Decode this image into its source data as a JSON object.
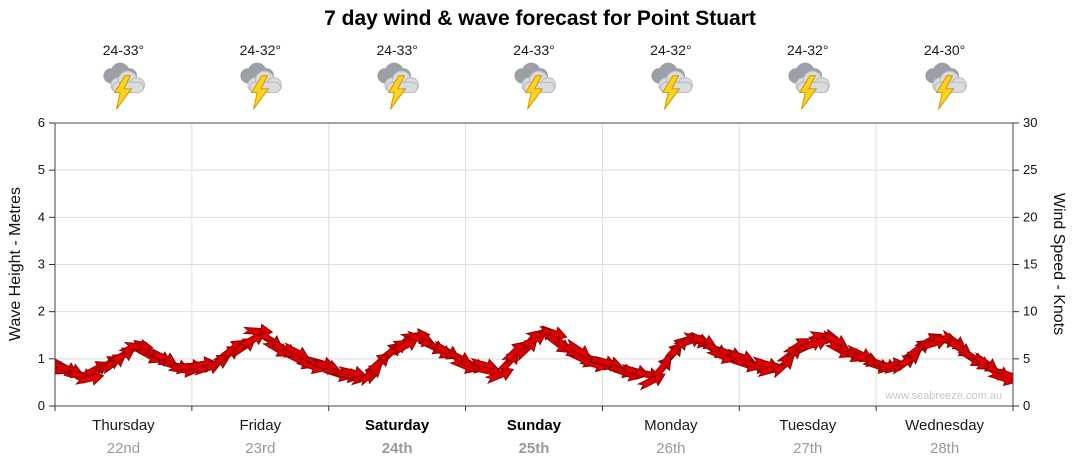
{
  "title": "7 day wind & wave forecast for Point Stuart",
  "watermark": "www.seabreeze.com.au",
  "forecast_days": [
    {
      "temp": "24-33°",
      "day": "Thursday",
      "date": "22nd",
      "icon": "thunderstorm",
      "weekend": false
    },
    {
      "temp": "24-32°",
      "day": "Friday",
      "date": "23rd",
      "icon": "thunderstorm",
      "weekend": false
    },
    {
      "temp": "24-33°",
      "day": "Saturday",
      "date": "24th",
      "icon": "thunderstorm",
      "weekend": true
    },
    {
      "temp": "24-33°",
      "day": "Sunday",
      "date": "25th",
      "icon": "thunderstorm",
      "weekend": true
    },
    {
      "temp": "24-32°",
      "day": "Monday",
      "date": "26th",
      "icon": "thunderstorm",
      "weekend": false
    },
    {
      "temp": "24-32°",
      "day": "Tuesday",
      "date": "27th",
      "icon": "thunderstorm",
      "weekend": false
    },
    {
      "temp": "24-30°",
      "day": "Wednesday",
      "date": "28th",
      "icon": "thunderstorm",
      "weekend": false
    }
  ],
  "chart_data": {
    "type": "area",
    "title": "7 day wind & wave forecast for Point Stuart",
    "axes": {
      "left": {
        "label": "Wave Height - Metres",
        "lim": [
          0,
          6
        ],
        "ticks": [
          0,
          1,
          2,
          3,
          4,
          5,
          6
        ]
      },
      "right": {
        "label": "Wind Speed - Knots",
        "lim": [
          0,
          30
        ],
        "ticks": [
          0,
          5,
          10,
          15,
          20,
          25,
          30
        ]
      }
    },
    "days": [
      "Thursday",
      "Friday",
      "Saturday",
      "Sunday",
      "Monday",
      "Tuesday",
      "Wednesday"
    ],
    "points_per_day": 8,
    "grid": true,
    "legend": "none",
    "series": [
      {
        "name": "Wind Speed",
        "unit": "knots",
        "color": "#e10000",
        "values": [
          4.5,
          3.5,
          3.2,
          4.2,
          5.5,
          6.2,
          5.2,
          4.3,
          4.0,
          4.3,
          5.2,
          6.6,
          7.6,
          6.4,
          5.4,
          4.5,
          4.0,
          3.4,
          3.0,
          4.5,
          6.2,
          7.2,
          6.6,
          5.5,
          4.6,
          4.0,
          3.6,
          5.5,
          7.2,
          7.6,
          6.2,
          5.0,
          4.5,
          4.0,
          3.4,
          3.0,
          5.2,
          7.2,
          6.6,
          5.6,
          5.0,
          4.4,
          3.8,
          5.4,
          6.6,
          7.2,
          6.2,
          5.2,
          4.6,
          4.0,
          5.2,
          6.6,
          7.2,
          6.0,
          4.8,
          3.6,
          3.0
        ]
      }
    ]
  }
}
